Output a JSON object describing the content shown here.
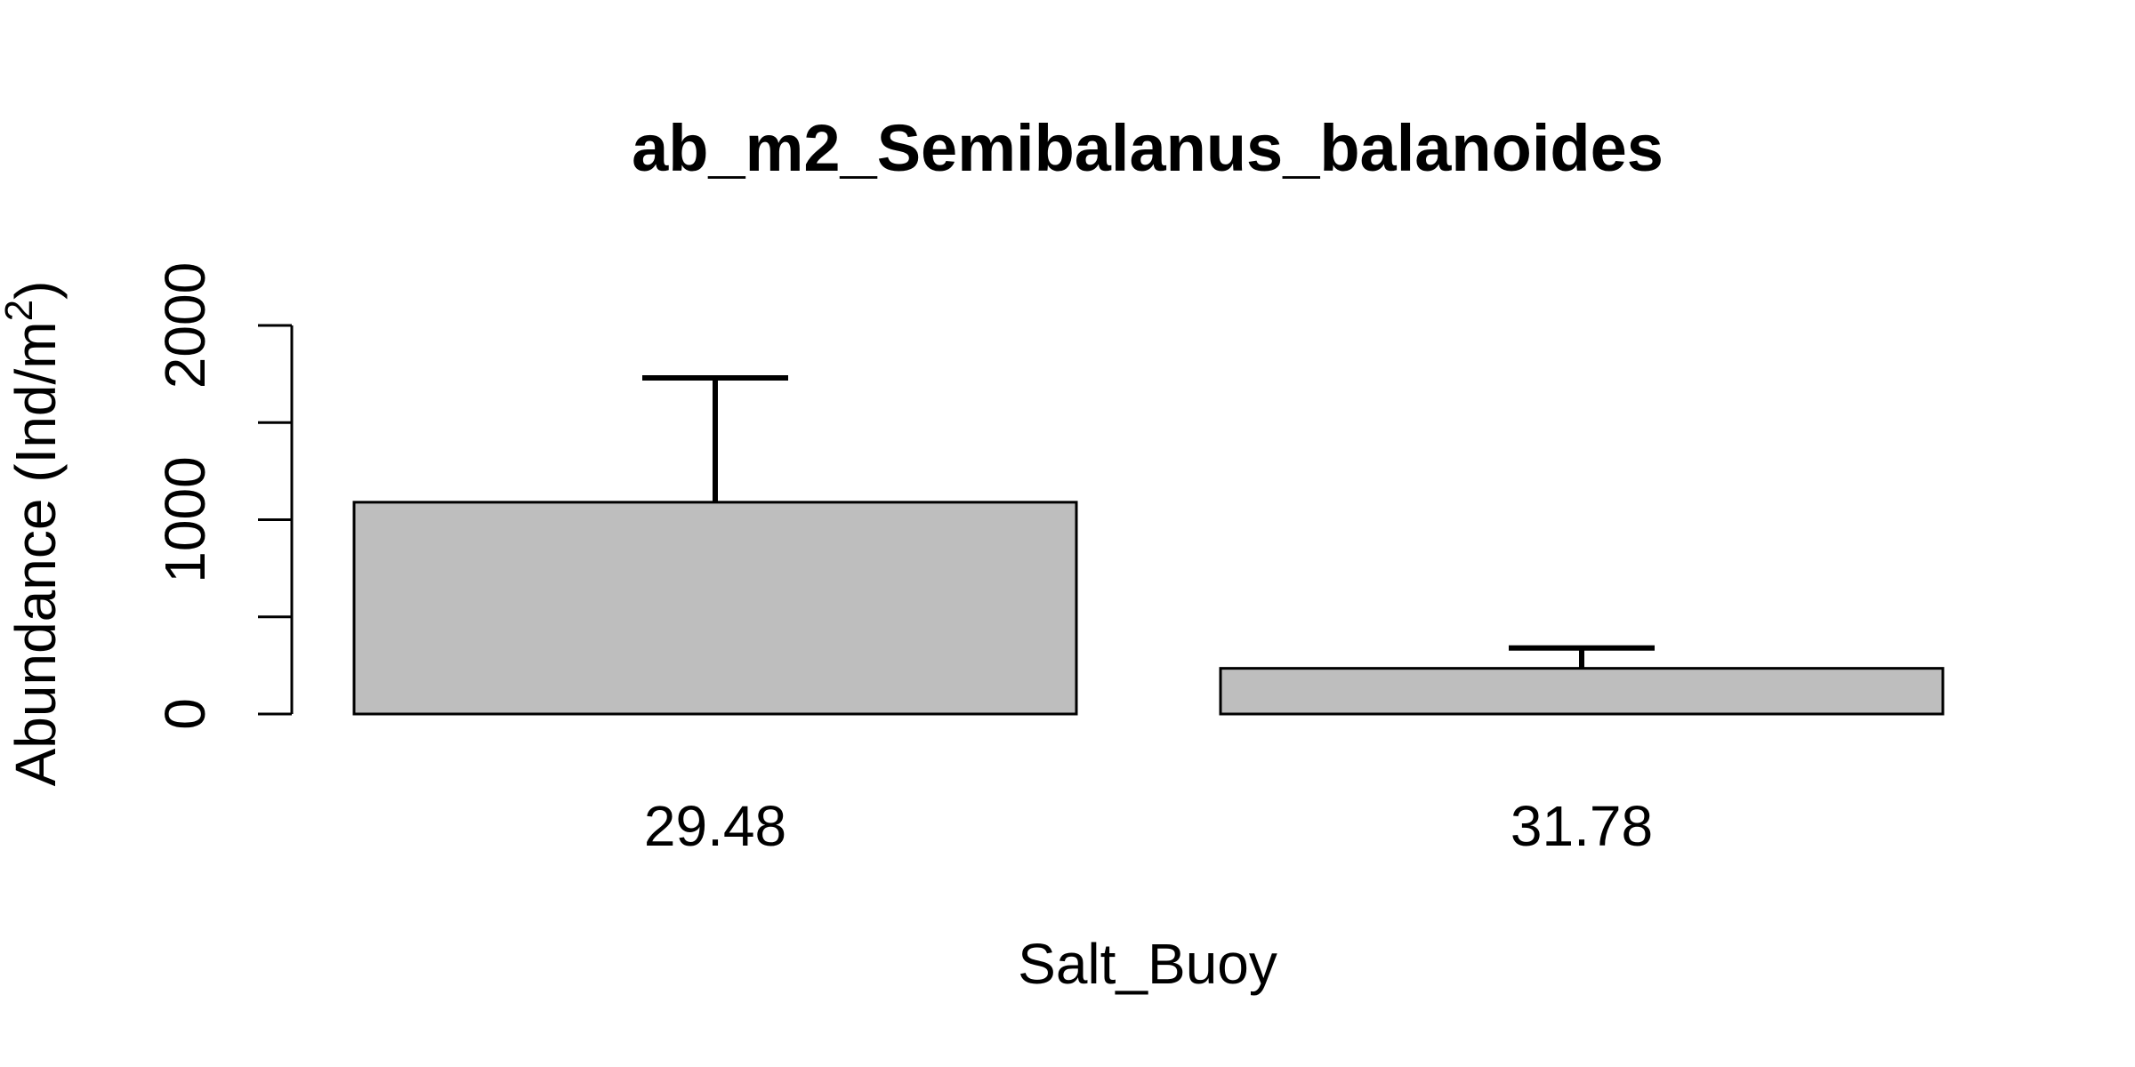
{
  "chart_data": {
    "type": "bar",
    "title": "ab_m2_Semibalanus_balanoides",
    "xlabel": "Salt_Buoy",
    "ylabel": {
      "main": "Abundance (Ind/m",
      "sup": "2",
      "end": ")"
    },
    "categories": [
      "29.48",
      "31.78"
    ],
    "values": [
      1090,
      235
    ],
    "error_upper": [
      1730,
      340
    ],
    "ylim": [
      0,
      2000
    ],
    "yticks": [
      0,
      500,
      1000,
      1500,
      2000
    ],
    "ytick_labels": [
      "0",
      "",
      "1000",
      "",
      "2000"
    ],
    "bar_color": "#bebebe",
    "grid": false,
    "legend": "none"
  }
}
